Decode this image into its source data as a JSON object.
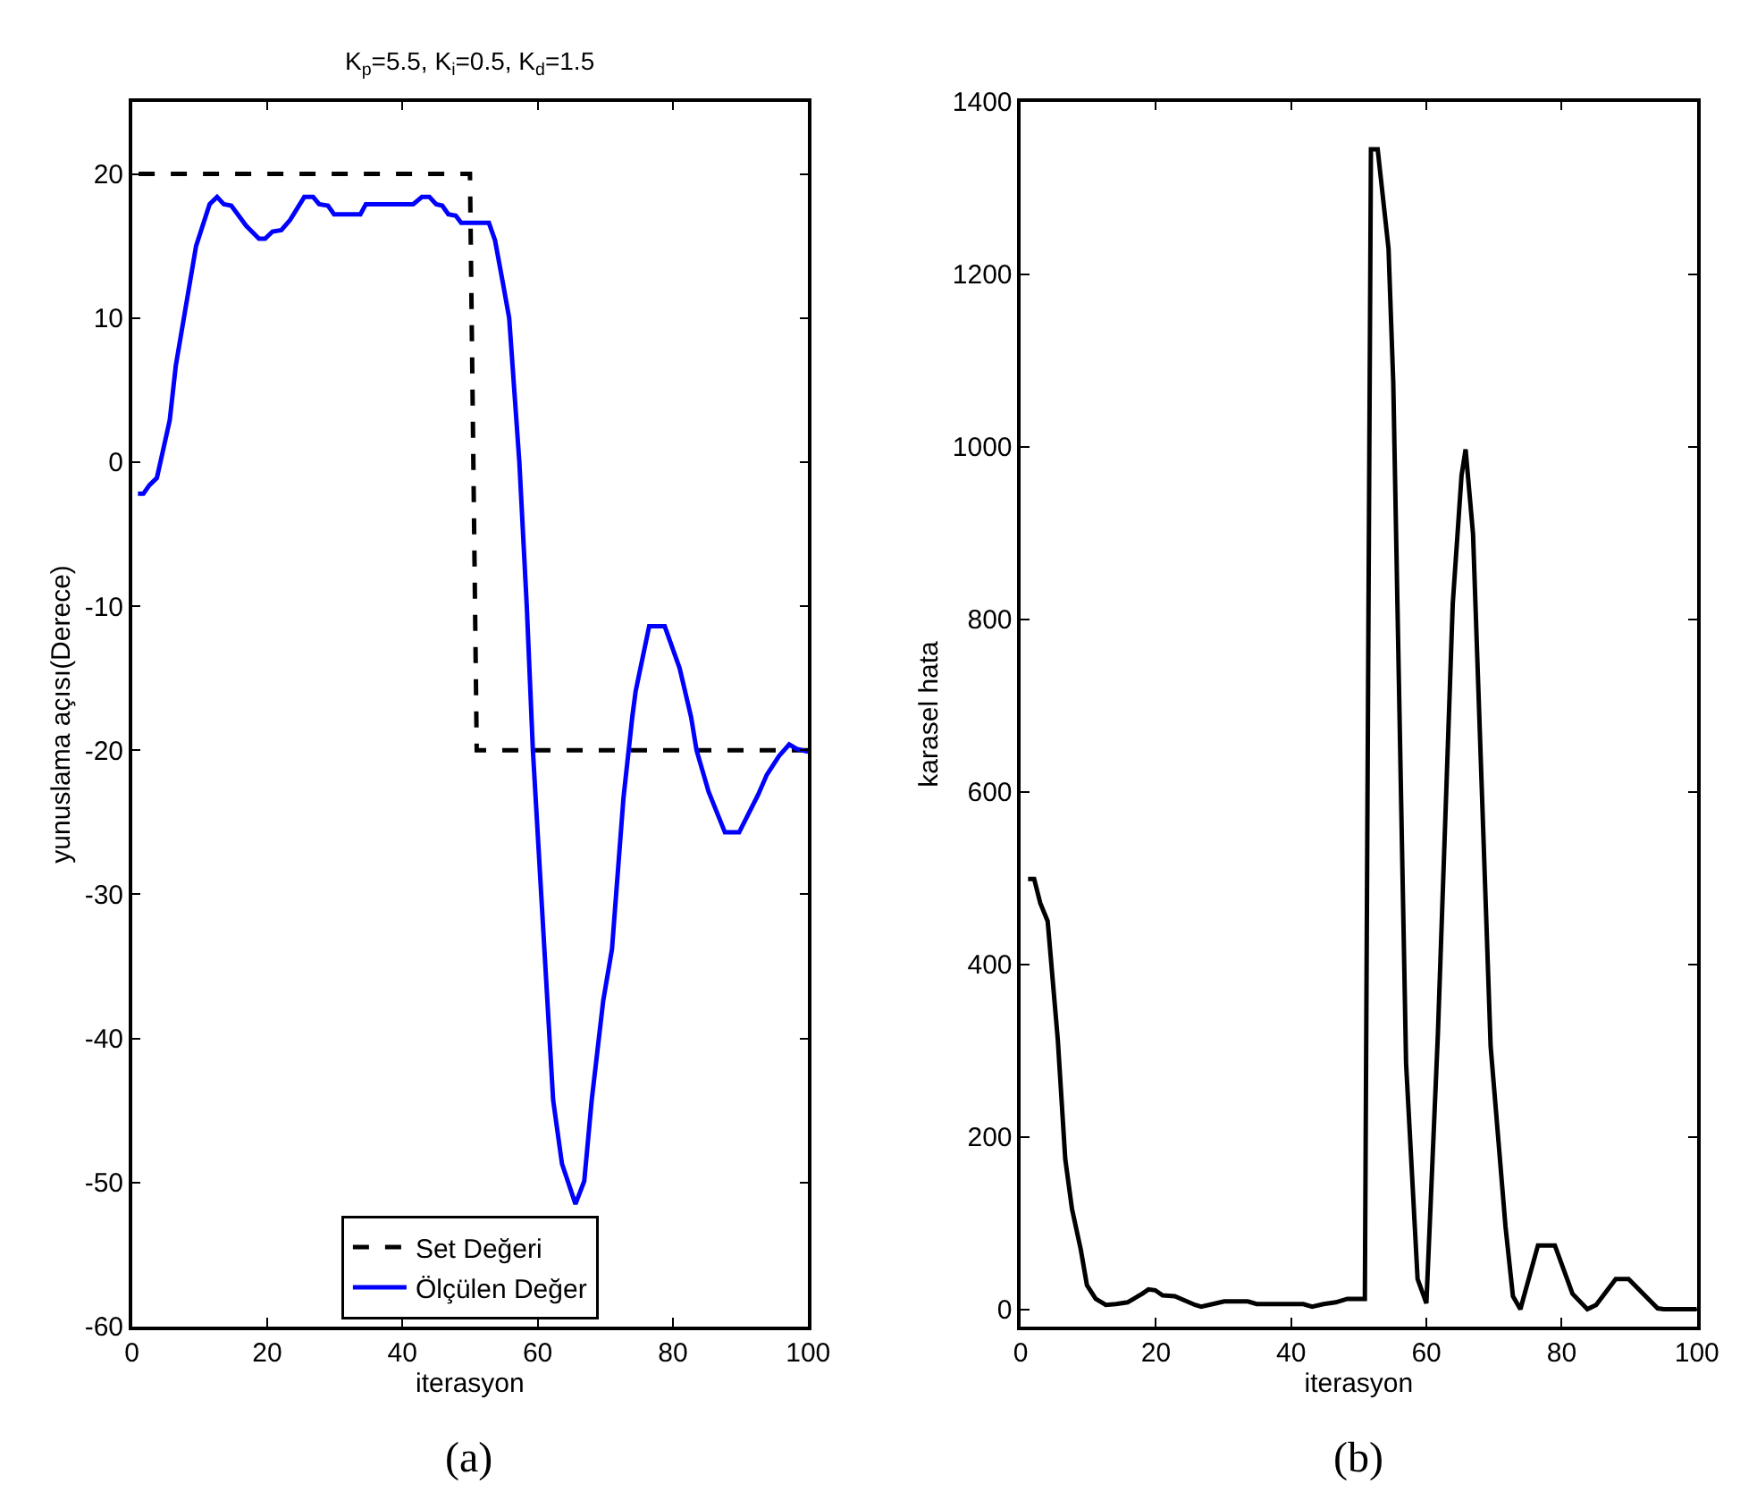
{
  "chart_data": [
    {
      "type": "line",
      "title": "K$_{p}$=5.5, K$_{i}$=0.5, K$_{d}$=1.5",
      "xlabel": "iterasyon",
      "ylabel": "yunuslama açısı(Derece)",
      "xlim": [
        0,
        100
      ],
      "xticks": [
        0,
        20,
        40,
        60,
        80,
        100
      ],
      "ylim": [
        -60,
        25
      ],
      "yticks": [
        -60,
        -50,
        -40,
        -30,
        -20,
        -10,
        0,
        10,
        20
      ],
      "legend": "bottom",
      "marker": "none",
      "annotations": [
        "(a)"
      ],
      "series": [
        {
          "name": "Set Değeri",
          "color": "#000000",
          "line_style": "dashed",
          "x": [
            1,
            50,
            51,
            100
          ],
          "values": [
            20,
            20,
            -20,
            -20
          ]
        },
        {
          "name": "Ölçülen Değer",
          "color": "#0000ff",
          "line_style": "solid",
          "x": [
            0.9,
            1.7,
            2.6,
            3.7,
            5.6,
            6.5,
            8.2,
            9.5,
            11.5,
            12.6,
            13.6,
            14.7,
            16.9,
            18.8,
            19.7,
            20.8,
            22.1,
            23.4,
            25.5,
            26.8,
            27.7,
            29,
            29.9,
            33.8,
            34.6,
            41.6,
            42.9,
            44,
            45,
            45.9,
            46.8,
            47.9,
            48.7,
            52.8,
            53.7,
            54.8,
            55.8,
            57.3,
            58.4,
            59.3,
            61,
            62.3,
            63.6,
            65.6,
            66.9,
            68,
            69.7,
            71,
            72.7,
            74,
            74.5,
            76.5,
            78.8,
            81,
            82.7,
            83.5,
            85.3,
            87.7,
            89.8,
            92.6,
            93.9,
            95.7,
            97.2,
            98.3,
            100
          ],
          "values": [
            -2.2,
            -2.2,
            -1.6,
            -1.1,
            2.9,
            6.7,
            11.4,
            15,
            17.9,
            18.4,
            17.9,
            17.8,
            16.4,
            15.5,
            15.5,
            16,
            16.1,
            16.8,
            18.4,
            18.4,
            17.9,
            17.8,
            17.2,
            17.2,
            17.9,
            17.9,
            18.4,
            18.4,
            17.9,
            17.8,
            17.2,
            17.1,
            16.6,
            16.6,
            15.4,
            12.6,
            10,
            0,
            -10,
            -20,
            -33.8,
            -44.3,
            -48.7,
            -51.5,
            -49.9,
            -44.3,
            -37.4,
            -33.8,
            -23.3,
            -17.7,
            -15.9,
            -11.4,
            -11.4,
            -14.3,
            -17.7,
            -20,
            -22.9,
            -25.7,
            -25.7,
            -23.1,
            -21.7,
            -20.4,
            -19.6,
            -19.9,
            -20.1
          ]
        }
      ]
    },
    {
      "type": "line",
      "xlabel": "iterasyon",
      "ylabel": "karasel hata",
      "xlim": [
        0,
        100
      ],
      "xticks": [
        0,
        20,
        40,
        60,
        80,
        100
      ],
      "ylim": [
        -20,
        1400
      ],
      "yticks": [
        0,
        200,
        400,
        600,
        800,
        1000,
        1200,
        1400
      ],
      "legend": false,
      "marker": "none",
      "annotations": [
        "(b)"
      ],
      "series": [
        {
          "color": "#000000",
          "line_style": "solid",
          "x": [
            1.1,
            2,
            2.9,
            4,
            5.5,
            6.6,
            7.6,
            8.9,
            9.8,
            11.1,
            12.6,
            14.1,
            15.8,
            18,
            18.9,
            19.9,
            21,
            22.8,
            25.8,
            26.7,
            28.4,
            30.1,
            33.6,
            34.9,
            41.8,
            43.1,
            44.8,
            46.6,
            48.3,
            50.9,
            51.8,
            52.8,
            54.4,
            55.1,
            57,
            58.7,
            60,
            61.7,
            63.9,
            65.2,
            65.8,
            66.9,
            69.5,
            71.7,
            72.8,
            73.9,
            76.5,
            79,
            81.6,
            83.8,
            85.1,
            88,
            89.9,
            94.2,
            95.1,
            100
          ],
          "values": [
            499,
            499,
            471,
            450,
            312,
            174,
            116,
            69,
            28,
            12,
            5,
            6,
            8,
            18,
            23,
            22,
            16,
            15,
            5,
            3,
            6,
            9,
            9,
            6,
            6,
            3,
            6,
            8,
            12,
            12,
            1345,
            1345,
            1230,
            1075,
            285,
            35,
            7,
            319,
            818,
            967,
            997,
            899,
            305,
            96,
            15,
            0,
            74,
            74,
            18,
            0,
            5,
            35,
            35,
            1,
            0,
            0
          ]
        }
      ]
    }
  ]
}
